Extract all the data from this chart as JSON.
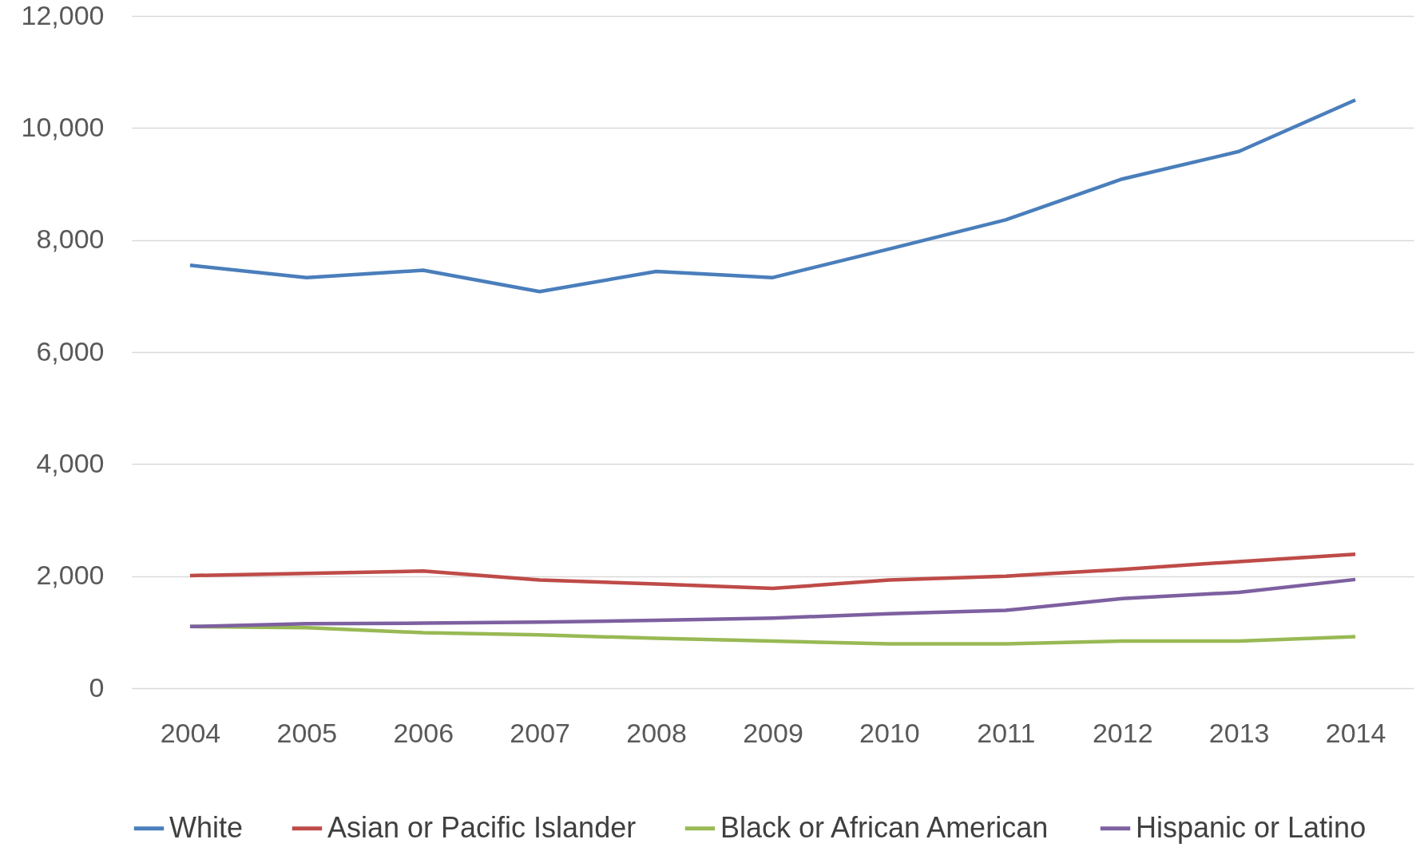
{
  "chart_data": {
    "type": "line",
    "categories": [
      "2004",
      "2005",
      "2006",
      "2007",
      "2008",
      "2009",
      "2010",
      "2011",
      "2012",
      "2013",
      "2014"
    ],
    "series": [
      {
        "name": "White",
        "color": "#4a7ebb",
        "values": [
          7550,
          7330,
          7460,
          7080,
          7440,
          7330,
          7840,
          8360,
          9090,
          9580,
          10500
        ]
      },
      {
        "name": "Asian or Pacific Islander",
        "color": "#be4b48",
        "values": [
          2010,
          2050,
          2090,
          1930,
          1860,
          1780,
          1930,
          2000,
          2120,
          2260,
          2390
        ]
      },
      {
        "name": "Black or African American",
        "color": "#98b954",
        "values": [
          1100,
          1080,
          990,
          950,
          890,
          840,
          790,
          790,
          840,
          840,
          920
        ]
      },
      {
        "name": "Hispanic or Latino",
        "color": "#7d60a0",
        "values": [
          1100,
          1150,
          1160,
          1180,
          1210,
          1250,
          1330,
          1390,
          1600,
          1710,
          1940
        ]
      }
    ],
    "ylim": [
      0,
      12000
    ],
    "yticks": [
      0,
      {
        "value": 2000,
        "label": "2,000"
      },
      {
        "value": 4000,
        "label": "4,000"
      },
      {
        "value": 6000,
        "label": "6,000"
      },
      {
        "value": 8000,
        "label": "8,000"
      },
      {
        "value": 10000,
        "label": "10,000"
      },
      {
        "value": 12000,
        "label": "12,000"
      }
    ],
    "grid": "y",
    "legend": "bottom",
    "marker": "none",
    "line_style": "solid"
  }
}
